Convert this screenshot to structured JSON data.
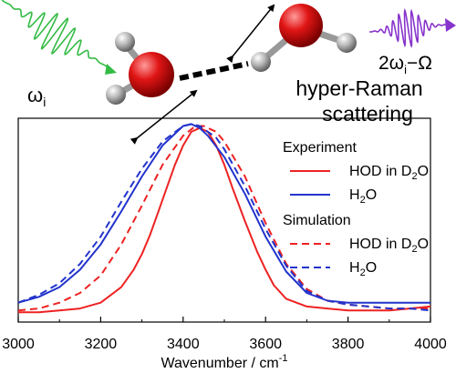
{
  "chart_data": {
    "type": "line",
    "title": "",
    "xlabel": "Wavenumber / cm",
    "xlabel_superscript": "-1",
    "ylabel": "",
    "xlim": [
      3000,
      4000
    ],
    "ylim": [
      -0.05,
      1.0
    ],
    "xticks": [
      3000,
      3200,
      3400,
      3600,
      3800,
      4000
    ],
    "legend_placement": "right",
    "legend_groups": [
      {
        "title": "Experiment",
        "entries": [
          0,
          1
        ]
      },
      {
        "title": "Simulation",
        "entries": [
          2,
          3
        ]
      }
    ],
    "series": [
      {
        "name": "HOD in D2O",
        "label_main": "HOD in D",
        "label_sub": "2",
        "label_tail": "O",
        "color": "#ee2222",
        "dash": "solid",
        "x": [
          3000,
          3050,
          3100,
          3150,
          3200,
          3250,
          3280,
          3300,
          3320,
          3340,
          3360,
          3380,
          3400,
          3420,
          3440,
          3460,
          3480,
          3500,
          3520,
          3550,
          3580,
          3600,
          3620,
          3650,
          3700,
          3750,
          3800,
          3850,
          3900,
          3950,
          4000
        ],
        "y": [
          0.0,
          0.0,
          0.01,
          0.02,
          0.05,
          0.13,
          0.22,
          0.3,
          0.4,
          0.52,
          0.64,
          0.76,
          0.86,
          0.93,
          0.95,
          0.93,
          0.86,
          0.76,
          0.64,
          0.47,
          0.31,
          0.22,
          0.14,
          0.07,
          0.03,
          0.02,
          0.01,
          0.01,
          0.01,
          0.02,
          0.03
        ]
      },
      {
        "name": "H2O",
        "label_main": "H",
        "label_sub": "2",
        "label_tail": "O",
        "color": "#2233cc",
        "dash": "solid",
        "x": [
          3000,
          3050,
          3100,
          3150,
          3200,
          3250,
          3300,
          3350,
          3400,
          3420,
          3440,
          3460,
          3500,
          3550,
          3600,
          3650,
          3700,
          3750,
          3800,
          3900,
          4000
        ],
        "y": [
          0.05,
          0.08,
          0.13,
          0.22,
          0.35,
          0.52,
          0.7,
          0.86,
          0.96,
          0.97,
          0.95,
          0.91,
          0.8,
          0.61,
          0.39,
          0.21,
          0.1,
          0.06,
          0.05,
          0.05,
          0.05
        ]
      },
      {
        "name": "HOD in D2O",
        "label_main": "HOD in D",
        "label_sub": "2",
        "label_tail": "O",
        "color": "#ee2222",
        "dash": "dashed",
        "x": [
          3000,
          3050,
          3100,
          3150,
          3200,
          3250,
          3300,
          3350,
          3400,
          3430,
          3450,
          3480,
          3500,
          3550,
          3600,
          3650,
          3700,
          3750,
          3800,
          3850,
          3900,
          3950,
          4000
        ],
        "y": [
          0.01,
          0.02,
          0.05,
          0.1,
          0.19,
          0.35,
          0.55,
          0.76,
          0.91,
          0.96,
          0.96,
          0.93,
          0.88,
          0.7,
          0.46,
          0.25,
          0.12,
          0.06,
          0.04,
          0.03,
          0.02,
          0.02,
          0.02
        ]
      },
      {
        "name": "H2O",
        "label_main": "H",
        "label_sub": "2",
        "label_tail": "O",
        "color": "#2233cc",
        "dash": "dashed",
        "x": [
          3000,
          3050,
          3100,
          3150,
          3200,
          3250,
          3300,
          3350,
          3400,
          3420,
          3440,
          3480,
          3500,
          3550,
          3600,
          3650,
          3700,
          3750,
          3800,
          3850,
          3900,
          3950,
          4000
        ],
        "y": [
          0.05,
          0.09,
          0.15,
          0.25,
          0.39,
          0.57,
          0.74,
          0.88,
          0.96,
          0.97,
          0.96,
          0.9,
          0.84,
          0.65,
          0.43,
          0.24,
          0.11,
          0.06,
          0.04,
          0.03,
          0.02,
          0.02,
          0.01
        ]
      }
    ]
  },
  "annotations": {
    "incident": {
      "label": "ω",
      "sub": "i",
      "color": "#33bb44"
    },
    "scattered": {
      "label": "2ω",
      "sub": "i",
      "tail": "−Ω",
      "color": "#8833cc"
    },
    "process_line1": "hyper-Raman",
    "process_line2": "scattering"
  },
  "molecule": {
    "oxygen_color": "#dd1111",
    "hydrogen_color": "#a0a0a0"
  }
}
